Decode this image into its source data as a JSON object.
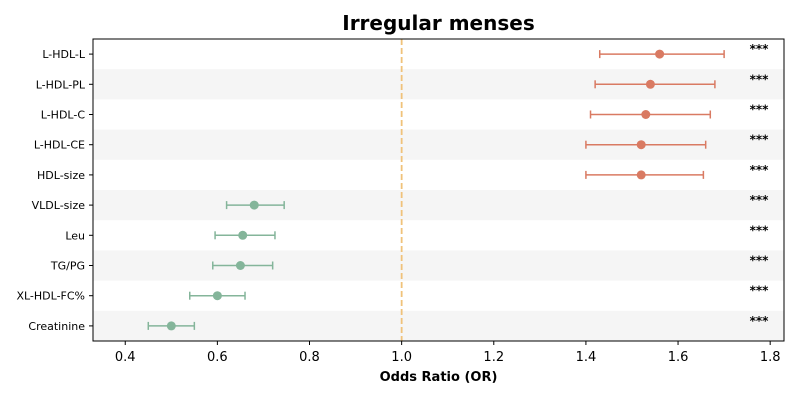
{
  "chart_data": {
    "type": "forest",
    "title": "Irregular menses",
    "xlabel": "Odds Ratio (OR)",
    "ylabel": "",
    "xlim": [
      0.33,
      1.83
    ],
    "x_ticks": [
      0.4,
      0.6,
      0.8,
      1.0,
      1.2,
      1.4,
      1.6,
      1.8
    ],
    "x_tick_labels": [
      "0.4",
      "0.6",
      "0.8",
      "1.0",
      "1.2",
      "1.4",
      "1.6",
      "1.8"
    ],
    "reference_line": 1.0,
    "grid": false,
    "alternating_row_shading": true,
    "colors": {
      "increased": "#d97a62",
      "decreased": "#84b59a",
      "reference_line": "#f0c27a",
      "row_shade": "#f5f5f5"
    },
    "rows": [
      {
        "label": "L-HDL-L",
        "or": 1.56,
        "lower": 1.43,
        "upper": 1.7,
        "sig": "***",
        "group": "increased"
      },
      {
        "label": "L-HDL-PL",
        "or": 1.54,
        "lower": 1.42,
        "upper": 1.68,
        "sig": "***",
        "group": "increased"
      },
      {
        "label": "L-HDL-C",
        "or": 1.53,
        "lower": 1.41,
        "upper": 1.67,
        "sig": "***",
        "group": "increased"
      },
      {
        "label": "L-HDL-CE",
        "or": 1.52,
        "lower": 1.4,
        "upper": 1.66,
        "sig": "***",
        "group": "increased"
      },
      {
        "label": "HDL-size",
        "or": 1.52,
        "lower": 1.4,
        "upper": 1.655,
        "sig": "***",
        "group": "increased"
      },
      {
        "label": "VLDL-size",
        "or": 0.68,
        "lower": 0.62,
        "upper": 0.745,
        "sig": "***",
        "group": "decreased"
      },
      {
        "label": "Leu",
        "or": 0.655,
        "lower": 0.595,
        "upper": 0.725,
        "sig": "***",
        "group": "decreased"
      },
      {
        "label": "TG/PG",
        "or": 0.65,
        "lower": 0.59,
        "upper": 0.72,
        "sig": "***",
        "group": "decreased"
      },
      {
        "label": "XL-HDL-FC%",
        "or": 0.6,
        "lower": 0.54,
        "upper": 0.66,
        "sig": "***",
        "group": "decreased"
      },
      {
        "label": "Creatinine",
        "or": 0.5,
        "lower": 0.45,
        "upper": 0.55,
        "sig": "***",
        "group": "decreased"
      }
    ]
  }
}
